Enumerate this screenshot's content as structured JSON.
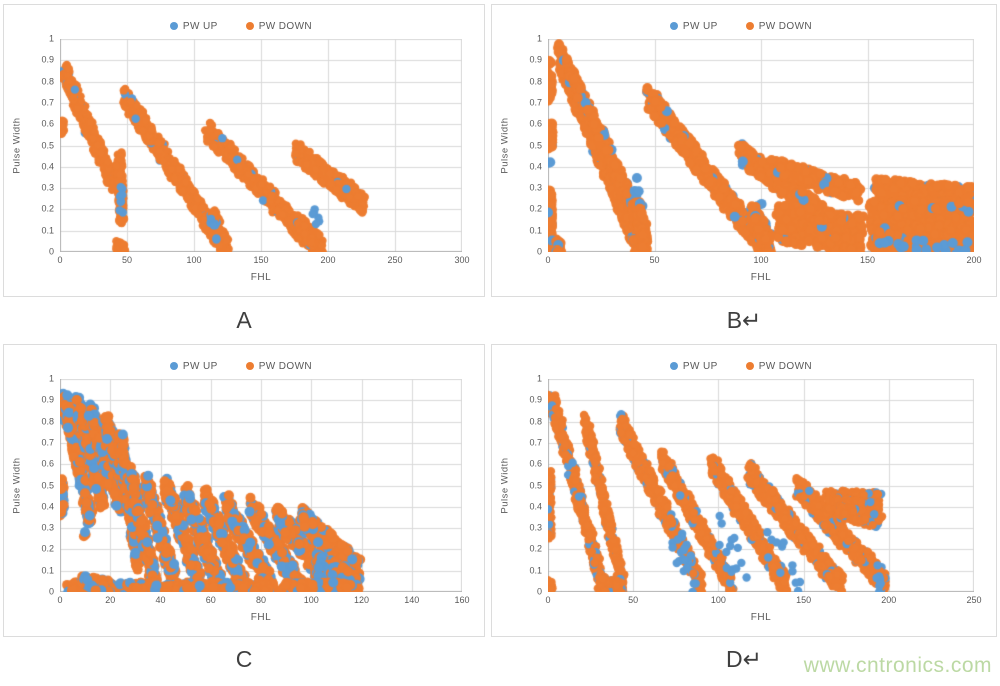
{
  "page": {
    "watermark": "www.cntronics.com"
  },
  "legend": {
    "up": "PW UP",
    "down": "PW DOWN"
  },
  "colors": {
    "up": "#5B9BD5",
    "down": "#ED7D31",
    "grid": "#d9d9d9",
    "axis": "#b3b3b3",
    "text": "#595959",
    "watermark": "#bcd9a4",
    "panel_border": "#dcdcdc"
  },
  "chart_data": [
    {
      "type": "scatter",
      "caption": "A",
      "xlabel": "FHL",
      "ylabel": "Pulse Width",
      "xlim": [
        0,
        300
      ],
      "ylim": [
        0,
        1
      ],
      "xticks": [
        0,
        50,
        100,
        150,
        200,
        250,
        300
      ],
      "yticks": [
        0,
        0.1,
        0.2,
        0.3,
        0.4,
        0.5,
        0.6,
        0.7,
        0.8,
        0.9,
        1
      ],
      "series": [
        {
          "name": "PW UP",
          "color_key": "up"
        },
        {
          "name": "PW DOWN",
          "color_key": "down"
        }
      ],
      "grid": true,
      "legend_position": "top",
      "point_radius": 4.2,
      "blue_fraction": 0.04,
      "x_jitter": 4,
      "seed": 11,
      "bands": [
        [
          1,
          0.61,
          1,
          0.57,
          0.025,
          30
        ],
        [
          3,
          0.85,
          40,
          0.32,
          0.045,
          300
        ],
        [
          44,
          0.46,
          46,
          0.16,
          0.04,
          100
        ],
        [
          43,
          0.03,
          47,
          0.01,
          0.025,
          45
        ],
        [
          45,
          0.3,
          45,
          0.19,
          0.05,
          8,
          "up"
        ],
        [
          48,
          0.73,
          118,
          0.07,
          0.045,
          420
        ],
        [
          113,
          0.16,
          124,
          0.01,
          0.05,
          150
        ],
        [
          112,
          0.14,
          117,
          0.07,
          0.04,
          7,
          "up"
        ],
        [
          110,
          0.57,
          186,
          0.06,
          0.045,
          420
        ],
        [
          178,
          0.13,
          196,
          0.01,
          0.05,
          150
        ],
        [
          190,
          0.2,
          194,
          0.14,
          0.04,
          6,
          "up"
        ],
        [
          176,
          0.47,
          226,
          0.23,
          0.045,
          330
        ],
        [
          214,
          0.3,
          226,
          0.21,
          0.04,
          70
        ]
      ]
    },
    {
      "type": "scatter",
      "caption": "B↵",
      "xlabel": "FHL",
      "ylabel": "Pulse Width",
      "xlim": [
        0,
        200
      ],
      "ylim": [
        0,
        1
      ],
      "xticks": [
        0,
        50,
        100,
        150,
        200
      ],
      "yticks": [
        0,
        0.1,
        0.2,
        0.3,
        0.4,
        0.5,
        0.6,
        0.7,
        0.8,
        0.9,
        1
      ],
      "series": [
        {
          "name": "PW UP",
          "color_key": "up"
        },
        {
          "name": "PW DOWN",
          "color_key": "down"
        }
      ],
      "grid": true,
      "legend_position": "top",
      "point_radius": 5,
      "blue_fraction": 0.05,
      "x_jitter": 2.2,
      "seed": 22,
      "bands": [
        [
          0.5,
          0.89,
          0.5,
          0.89,
          0.012,
          8
        ],
        [
          0.8,
          0.82,
          0.8,
          0.73,
          0.025,
          55
        ],
        [
          1,
          0.6,
          1,
          0.5,
          0.025,
          50
        ],
        [
          0.3,
          0.42,
          0.3,
          0.42,
          0.008,
          2,
          "up"
        ],
        [
          0.8,
          0.28,
          0.8,
          0.02,
          0.03,
          100
        ],
        [
          3,
          0.04,
          6,
          0.01,
          0.03,
          45
        ],
        [
          5,
          0.93,
          42,
          0.04,
          0.05,
          560
        ],
        [
          9,
          0.88,
          46,
          0.08,
          0.035,
          280
        ],
        [
          40,
          0.33,
          46,
          0.1,
          0.05,
          12,
          "up"
        ],
        [
          42,
          0.2,
          46,
          0.02,
          0.045,
          120
        ],
        [
          47,
          0.73,
          100,
          0.04,
          0.05,
          600
        ],
        [
          99,
          0.2,
          104,
          0.05,
          0.05,
          10,
          "up"
        ],
        [
          96,
          0.18,
          104,
          0.02,
          0.05,
          140
        ],
        [
          90,
          0.47,
          146,
          0.04,
          0.045,
          450
        ],
        [
          104,
          0.4,
          146,
          0.28,
          0.04,
          220
        ],
        [
          108,
          0.14,
          147,
          0.08,
          0.09,
          400
        ],
        [
          154,
          0.3,
          199,
          0.26,
          0.045,
          280
        ],
        [
          152,
          0.12,
          199,
          0.12,
          0.12,
          750
        ],
        [
          150,
          0.04,
          198,
          0.02,
          0.025,
          18,
          "up"
        ]
      ]
    },
    {
      "type": "scatter",
      "caption": "C",
      "xlabel": "FHL",
      "ylabel": "Pulse Width",
      "xlim": [
        0,
        160
      ],
      "ylim": [
        0,
        1
      ],
      "xticks": [
        0,
        20,
        40,
        60,
        80,
        100,
        120,
        140,
        160
      ],
      "yticks": [
        0,
        0.1,
        0.2,
        0.3,
        0.4,
        0.5,
        0.6,
        0.7,
        0.8,
        0.9,
        1
      ],
      "series": [
        {
          "name": "PW UP",
          "color_key": "up"
        },
        {
          "name": "PW DOWN",
          "color_key": "down"
        }
      ],
      "grid": true,
      "legend_position": "top",
      "point_radius": 5,
      "blue_fraction": 0.32,
      "x_jitter": 1.8,
      "seed": 33,
      "bands": [
        [
          0.6,
          0.52,
          0.6,
          0.38,
          0.03,
          55
        ],
        [
          2,
          0.9,
          2,
          0.8,
          0.035,
          65
        ],
        [
          2.5,
          0.88,
          12,
          0.35,
          0.045,
          260
        ],
        [
          7,
          0.88,
          17,
          0.43,
          0.045,
          240
        ],
        [
          12,
          0.85,
          24,
          0.4,
          0.045,
          240
        ],
        [
          18,
          0.8,
          28,
          0.42,
          0.045,
          220
        ],
        [
          24,
          0.74,
          31,
          0.12,
          0.045,
          220
        ],
        [
          28,
          0.55,
          38,
          0.03,
          0.05,
          240
        ],
        [
          34,
          0.52,
          46,
          0.04,
          0.05,
          240
        ],
        [
          42,
          0.5,
          56,
          0.02,
          0.05,
          250
        ],
        [
          50,
          0.46,
          64,
          0.02,
          0.05,
          250
        ],
        [
          58,
          0.44,
          73,
          0.03,
          0.05,
          250
        ],
        [
          66,
          0.42,
          84,
          0.02,
          0.05,
          260
        ],
        [
          76,
          0.4,
          96,
          0.02,
          0.05,
          270
        ],
        [
          86,
          0.37,
          108,
          0.03,
          0.05,
          270
        ],
        [
          96,
          0.35,
          119,
          0.1,
          0.05,
          270
        ],
        [
          102,
          0.12,
          119,
          0.03,
          0.06,
          240
        ],
        [
          3,
          0.02,
          118,
          0.02,
          0.025,
          450
        ],
        [
          9,
          0.05,
          20,
          0.02,
          0.03,
          100
        ],
        [
          10,
          0.27,
          10,
          0.27,
          0.012,
          3
        ]
      ]
    },
    {
      "type": "scatter",
      "caption": "D↵",
      "xlabel": "FHL",
      "ylabel": "Pulse Width",
      "xlim": [
        0,
        250
      ],
      "ylim": [
        0,
        1
      ],
      "xticks": [
        0,
        50,
        100,
        150,
        200,
        250
      ],
      "yticks": [
        0,
        0.1,
        0.2,
        0.3,
        0.4,
        0.5,
        0.6,
        0.7,
        0.8,
        0.9,
        1
      ],
      "series": [
        {
          "name": "PW UP",
          "color_key": "up"
        },
        {
          "name": "PW DOWN",
          "color_key": "down"
        }
      ],
      "grid": true,
      "legend_position": "top",
      "point_radius": 4.2,
      "blue_fraction": 0.1,
      "x_jitter": 2.5,
      "seed": 44,
      "bands": [
        [
          0.8,
          0.9,
          2,
          0.86,
          0.03,
          55
        ],
        [
          0.8,
          0.55,
          0.8,
          0.27,
          0.025,
          90
        ],
        [
          1,
          0.04,
          2,
          0.01,
          0.02,
          28
        ],
        [
          2,
          0.92,
          32,
          0.03,
          0.05,
          460
        ],
        [
          22,
          0.8,
          44,
          0.03,
          0.045,
          360
        ],
        [
          30,
          0.04,
          42,
          0.01,
          0.04,
          90
        ],
        [
          42,
          0.8,
          90,
          0.03,
          0.05,
          500
        ],
        [
          66,
          0.64,
          108,
          0.03,
          0.045,
          420
        ],
        [
          72,
          0.28,
          86,
          0.04,
          0.1,
          16,
          "up"
        ],
        [
          96,
          0.6,
          140,
          0.03,
          0.05,
          440
        ],
        [
          100,
          0.3,
          118,
          0.04,
          0.1,
          14,
          "up"
        ],
        [
          118,
          0.56,
          172,
          0.03,
          0.05,
          460
        ],
        [
          128,
          0.25,
          148,
          0.05,
          0.09,
          12,
          "up"
        ],
        [
          146,
          0.5,
          198,
          0.04,
          0.05,
          470
        ],
        [
          190,
          0.12,
          196,
          0.02,
          0.05,
          8,
          "up"
        ],
        [
          163,
          0.46,
          195,
          0.45,
          0.02,
          130
        ],
        [
          165,
          0.42,
          195,
          0.38,
          0.035,
          220
        ],
        [
          170,
          0.38,
          195,
          0.33,
          0.03,
          170
        ]
      ]
    }
  ]
}
